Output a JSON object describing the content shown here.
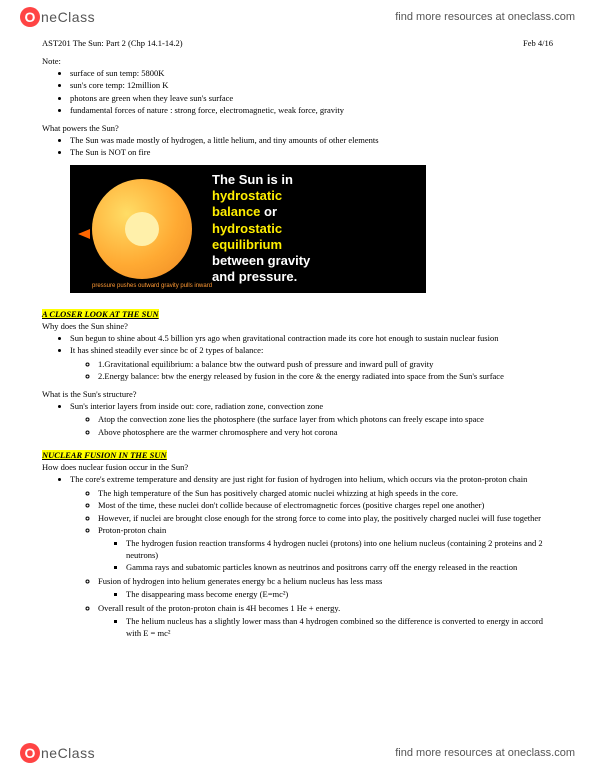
{
  "brand": {
    "circle": "O",
    "text": "neClass",
    "link": "find more resources at oneclass.com"
  },
  "title": "AST201  The Sun: Part 2 (Chp 14.1-14.2)",
  "date": "Feb 4/16",
  "note_label": "Note:",
  "notes": [
    "surface of sun temp: 5800K",
    "sun's core temp: 12million K",
    "photons are green when they leave sun's surface",
    "fundamental forces of nature : strong force, electromagnetic, weak force, gravity"
  ],
  "q_powers": "What powers the Sun?",
  "powers": [
    "The Sun was made mostly of hydrogen, a little helium, and tiny amounts of other elements",
    "The Sun is NOT on fire"
  ],
  "diagram": {
    "line1a": "The Sun is in",
    "line2_hydro": "hydrostatic",
    "line2_balance": "balance",
    "line2_or": " or",
    "line3_hydro": "hydrostatic",
    "line4_eq": "equilibrium",
    "line5": "between gravity",
    "line6": "and pressure.",
    "caption": "pressure pushes outward       gravity pulls inward"
  },
  "sec1": "A CLOSER LOOK AT THE SUN",
  "q_shine": "Why does the Sun shine?",
  "shine": {
    "l1": "Sun begun to shine about 4.5 billion yrs ago when gravitational contraction made its core hot enough to sustain nuclear fusion",
    "l2": "It has shined steadily ever since bc of 2 types of balance:",
    "sub1": "1.Gravitational equilibrium: a balance btw the outward push of pressure and inward pull of gravity",
    "sub2": "2.Energy balance: btw the energy released by fusion in the core & the energy radiated into space from the Sun's surface"
  },
  "q_struct": "What is the Sun's structure?",
  "struct": {
    "l1": "Sun's interior layers from inside out: core, radiation zone, convection zone",
    "sub1": "Atop the convection zone lies the photosphere (the surface layer from which photons can freely escape into space",
    "sub2": "Above photosphere are the warmer chromosphere and very hot corona"
  },
  "sec2": "NUCLEAR FUSION IN THE SUN",
  "q_fusion": "How does nuclear fusion occur in the Sun?",
  "fusion": {
    "l1": "The core's extreme temperature and density are just right for fusion of hydrogen into helium, which occurs via the proton-proton chain",
    "s1": "The high temperature of the Sun has positively charged atomic nuclei whizzing at high speeds in the core.",
    "s2": "Most of the time, these nuclei don't collide because of electromagnetic forces (positive charges repel one another)",
    "s3": "However, if nuclei are brought close enough for the strong force to come into play, the positively charged nuclei will fuse together",
    "s4": "Proton-proton chain",
    "p1": "The hydrogen fusion reaction transforms 4 hydrogen nuclei (protons) into one helium nucleus (containing 2 proteins and 2 neutrons)",
    "p2": "Gamma rays and subatomic particles known as neutrinos and positrons carry off the energy released in the reaction",
    "s5": "Fusion of hydrogen into helium generates energy bc a helium nucleus has less mass",
    "p3": "The disappearing mass become energy (E=mc²)",
    "s6": "Overall result of the proton-proton chain is 4H becomes 1 He + energy.",
    "p4": "The helium nucleus has a slightly lower mass than 4 hydrogen combined  so the difference is converted to energy in accord with E = mc²"
  }
}
